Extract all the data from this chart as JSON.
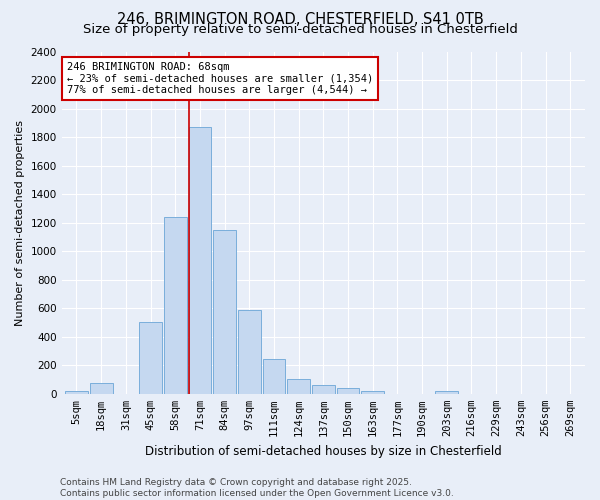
{
  "title1": "246, BRIMINGTON ROAD, CHESTERFIELD, S41 0TB",
  "title2": "Size of property relative to semi-detached houses in Chesterfield",
  "xlabel": "Distribution of semi-detached houses by size in Chesterfield",
  "ylabel": "Number of semi-detached properties",
  "categories": [
    "5sqm",
    "18sqm",
    "31sqm",
    "45sqm",
    "58sqm",
    "71sqm",
    "84sqm",
    "97sqm",
    "111sqm",
    "124sqm",
    "137sqm",
    "150sqm",
    "163sqm",
    "177sqm",
    "190sqm",
    "203sqm",
    "216sqm",
    "229sqm",
    "243sqm",
    "256sqm",
    "269sqm"
  ],
  "bar_values": [
    20,
    75,
    0,
    500,
    1240,
    1870,
    1145,
    585,
    245,
    105,
    60,
    38,
    20,
    0,
    0,
    18,
    0,
    0,
    0,
    0,
    0
  ],
  "bar_color": "#c5d8f0",
  "bar_edge_color": "#7aaedb",
  "background_color": "#e8eef8",
  "grid_color": "#ffffff",
  "vline_x_index": 5,
  "vline_color": "#cc0000",
  "annotation_text": "246 BRIMINGTON ROAD: 68sqm\n← 23% of semi-detached houses are smaller (1,354)\n77% of semi-detached houses are larger (4,544) →",
  "annotation_box_color": "white",
  "annotation_box_edge": "#cc0000",
  "ylim": [
    0,
    2400
  ],
  "yticks": [
    0,
    200,
    400,
    600,
    800,
    1000,
    1200,
    1400,
    1600,
    1800,
    2000,
    2200,
    2400
  ],
  "footer": "Contains HM Land Registry data © Crown copyright and database right 2025.\nContains public sector information licensed under the Open Government Licence v3.0.",
  "title1_fontsize": 10.5,
  "title2_fontsize": 9.5,
  "xlabel_fontsize": 8.5,
  "ylabel_fontsize": 8,
  "tick_fontsize": 7.5,
  "annot_fontsize": 7.5,
  "footer_fontsize": 6.5
}
